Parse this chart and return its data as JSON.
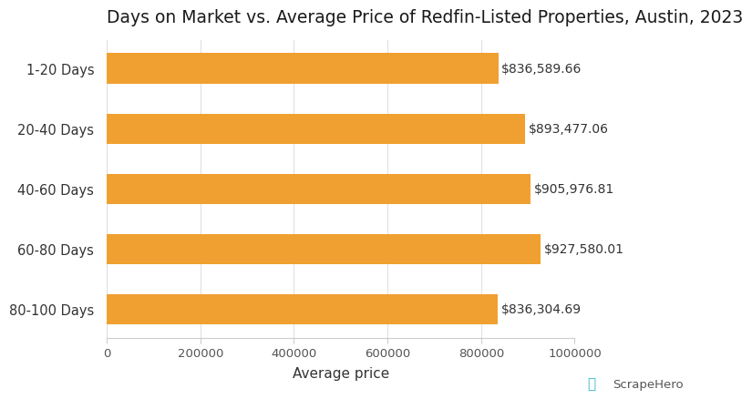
{
  "title": "Days on Market vs. Average Price of Redfin-Listed Properties, Austin, 2023",
  "categories": [
    "1-20 Days",
    "20-40 Days",
    "40-60 Days",
    "60-80 Days",
    "80-100 Days"
  ],
  "values": [
    836589.66,
    893477.06,
    905976.81,
    927580.01,
    836304.69
  ],
  "labels": [
    "$836,589.66",
    "$893,477.06",
    "$905,976.81",
    "$927,580.01",
    "$836,304.69"
  ],
  "bar_color": "#F0A030",
  "xlabel": "Average price",
  "xlim": [
    0,
    1000000
  ],
  "xticks": [
    0,
    200000,
    400000,
    600000,
    800000,
    1000000
  ],
  "xtick_labels": [
    "0",
    "200000",
    "400000",
    "600000",
    "800000",
    "1000000"
  ],
  "background_color": "#ffffff",
  "title_fontsize": 13.5,
  "category_fontsize": 10.5,
  "label_fontsize": 10,
  "tick_fontsize": 9.5,
  "xlabel_fontsize": 11,
  "bar_height": 0.5,
  "bar_color_hex": "#F0A030",
  "grid_color": "#e0e0e0",
  "spine_color": "#cccccc",
  "text_color": "#333333",
  "tick_color": "#555555",
  "scrape_hero_text_color": "#555555",
  "scrape_hero_icon_color": "#29b8d0"
}
